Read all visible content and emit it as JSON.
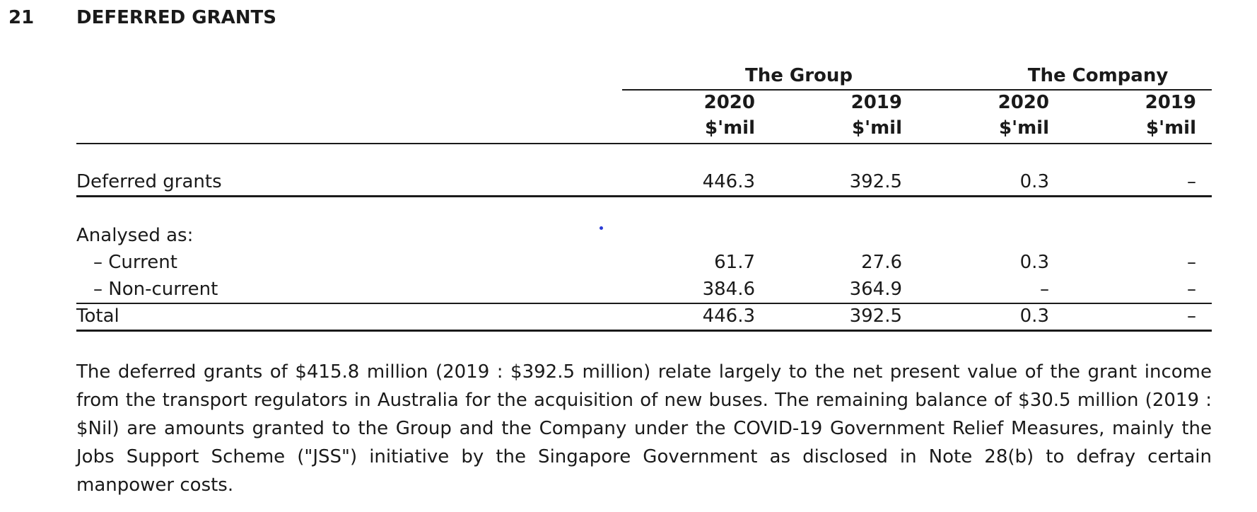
{
  "section": {
    "number": "21",
    "title": "DEFERRED GRANTS"
  },
  "table": {
    "groups": [
      "The Group",
      "The Company"
    ],
    "years": [
      "2020",
      "2019",
      "2020",
      "2019"
    ],
    "units": [
      "$'mil",
      "$'mil",
      "$'mil",
      "$'mil"
    ],
    "rows": [
      {
        "label": "Deferred grants",
        "values": [
          "446.3",
          "392.5",
          "0.3",
          "–"
        ]
      },
      {
        "label": "Analysed as:",
        "values": [
          "",
          "",
          "",
          ""
        ]
      },
      {
        "label": "– Current",
        "values": [
          "61.7",
          "27.6",
          "0.3",
          "–"
        ]
      },
      {
        "label": "– Non-current",
        "values": [
          "384.6",
          "364.9",
          "–",
          "–"
        ]
      },
      {
        "label": "Total",
        "values": [
          "446.3",
          "392.5",
          "0.3",
          "–"
        ]
      }
    ]
  },
  "paragraph": "The deferred grants of $415.8 million (2019 : $392.5 million) relate largely to the net present value of the grant income from the transport regulators in Australia for the acquisition of new buses. The remaining balance of $30.5 million (2019 : $Nil) are amounts granted to the Group and the Company under the COVID-19 Government Relief Measures, mainly the Jobs Support Scheme (\"JSS\") initiative by the Singapore Government as disclosed in Note 28(b) to defray certain manpower costs."
}
